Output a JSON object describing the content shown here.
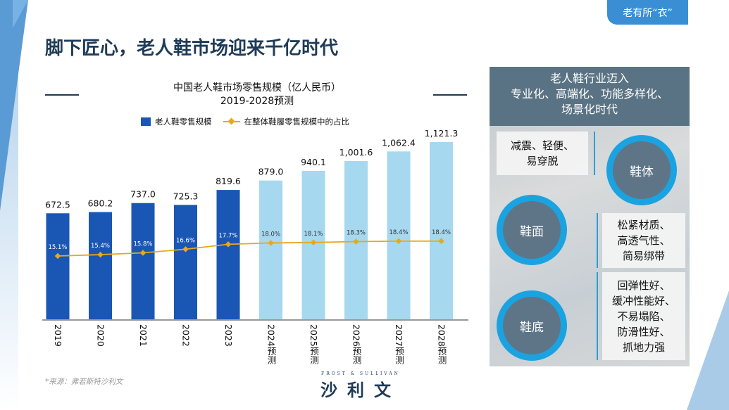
{
  "tag": "老有所“衣”",
  "title": "脚下匠心，老人鞋市场迎来千亿时代",
  "chart_data": {
    "type": "bar+line",
    "title": "中国老人鞋市场零售规模（亿人民币）",
    "subtitle": "2019-2028预测",
    "categories": [
      "2019",
      "2020",
      "2021",
      "2022",
      "2023",
      "2024预测",
      "2025预测",
      "2026预测",
      "2027预测",
      "2028预测"
    ],
    "series": [
      {
        "name": "老人鞋零售规模",
        "type": "bar",
        "values": [
          672.5,
          680.2,
          737.0,
          725.3,
          819.6,
          879.0,
          940.1,
          1001.6,
          1062.4,
          1121.3
        ],
        "labels": [
          "672.5",
          "680.2",
          "737.0",
          "725.3",
          "819.6",
          "879.0",
          "940.1",
          "1,001.6",
          "1,062.4",
          "1,121.3"
        ]
      },
      {
        "name": "在整体鞋履零售规模中的占比",
        "type": "line",
        "values": [
          15.1,
          15.4,
          15.8,
          16.6,
          17.7,
          18.0,
          18.1,
          18.3,
          18.4,
          18.4
        ],
        "labels": [
          "15.1%",
          "15.4%",
          "15.8%",
          "16.6%",
          "17.7%",
          "18.0%",
          "18.1%",
          "18.3%",
          "18.4%",
          "18.4%"
        ]
      }
    ],
    "colors": {
      "actual": "#1a56b4",
      "forecast": "#a6d8f0",
      "line": "#e8a81c"
    },
    "legend": "top"
  },
  "source": "*来源：弗若斯特沙利文",
  "logo": {
    "en": "FROST & SULLIVAN",
    "cn": "沙利文"
  },
  "panel": {
    "header": [
      "老人鞋行业迈入",
      "专业化、高端化、功能多样化、",
      "场景化时代"
    ],
    "items": [
      {
        "circle": "鞋体",
        "desc": [
          "减震、轻便、",
          "易穿脱"
        ]
      },
      {
        "circle": "鞋面",
        "desc": [
          "松紧材质、",
          "高透气性、",
          "简易绑带"
        ]
      },
      {
        "circle": "鞋底",
        "desc": [
          "回弹性好、",
          "缓冲性能好、",
          "不易塌陷、",
          "防滑性好、",
          "抓地力强"
        ]
      }
    ]
  }
}
